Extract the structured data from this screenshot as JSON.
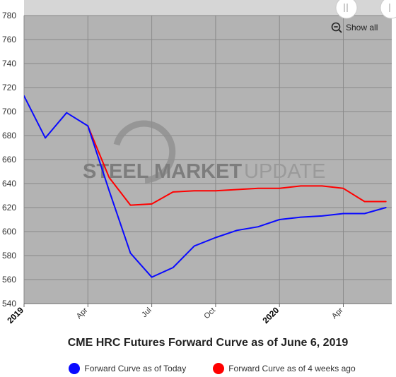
{
  "chart_data": {
    "type": "line",
    "title": "CME HRC Futures Forward Curve as of June 6, 2019",
    "watermark": {
      "part1": "STEEL MARKET",
      "part2": "UPDATE"
    },
    "show_all_label": "Show all",
    "x_labels": [
      {
        "month": 0,
        "text": "2019",
        "major": true
      },
      {
        "month": 3,
        "text": "Apr",
        "major": false
      },
      {
        "month": 6,
        "text": "Jul",
        "major": false
      },
      {
        "month": 9,
        "text": "Oct",
        "major": false
      },
      {
        "month": 12,
        "text": "2020",
        "major": true
      },
      {
        "month": 15,
        "text": "Apr",
        "major": false
      }
    ],
    "ylim": [
      540,
      780
    ],
    "y_ticks": [
      540,
      560,
      580,
      600,
      620,
      640,
      660,
      680,
      700,
      720,
      740,
      760,
      780
    ],
    "series": [
      {
        "name": "Forward Curve as of Today",
        "color": "#0a0aff",
        "x": [
          "2019-01",
          "2019-02",
          "2019-03",
          "2019-04",
          "2019-05",
          "2019-06",
          "2019-07",
          "2019-08",
          "2019-09",
          "2019-10",
          "2019-11",
          "2019-12",
          "2020-01",
          "2020-02",
          "2020-03",
          "2020-04",
          "2020-05",
          "2020-06"
        ],
        "values": [
          713,
          678,
          699,
          688,
          634,
          582,
          562,
          570,
          588,
          595,
          601,
          604,
          610,
          612,
          613,
          615,
          615,
          620
        ]
      },
      {
        "name": "Forward Curve as of 4 weeks ago",
        "color": "#ff0000",
        "x": [
          "2019-04",
          "2019-05",
          "2019-06",
          "2019-07",
          "2019-08",
          "2019-09",
          "2019-10",
          "2019-11",
          "2019-12",
          "2020-01",
          "2020-02",
          "2020-03",
          "2020-04",
          "2020-05",
          "2020-06"
        ],
        "values": [
          688,
          645,
          622,
          623,
          633,
          634,
          634,
          635,
          636,
          636,
          638,
          638,
          636,
          625,
          625
        ]
      }
    ],
    "grid": true,
    "legend_position": "bottom"
  }
}
